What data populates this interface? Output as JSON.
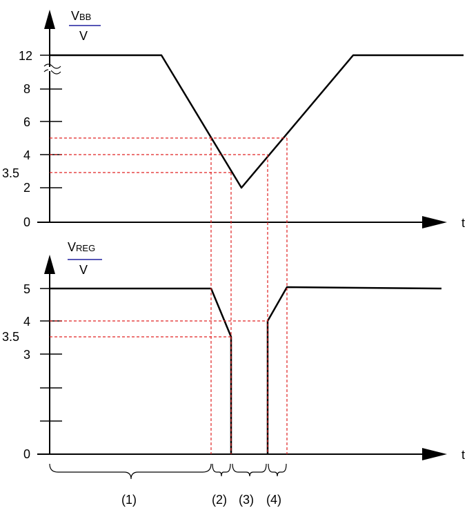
{
  "top_plot": {
    "y_label_main": "V",
    "y_label_sub": "BB",
    "y_unit": "V",
    "x_label": "t",
    "y_ticks": [
      "12",
      "8",
      "6",
      "4",
      "3.5",
      "2",
      "0"
    ]
  },
  "bottom_plot": {
    "y_label_main": "V",
    "y_label_sub": "REG",
    "y_unit": "V",
    "x_label": "t",
    "y_ticks": [
      "5",
      "4",
      "3.5",
      "3",
      "0"
    ]
  },
  "phases": [
    "(1)",
    "(2)",
    "(3)",
    "(4)"
  ],
  "colors": {
    "guide": "#e02020",
    "curve": "#000000",
    "fraction_bar": "#1f1f9e"
  }
}
